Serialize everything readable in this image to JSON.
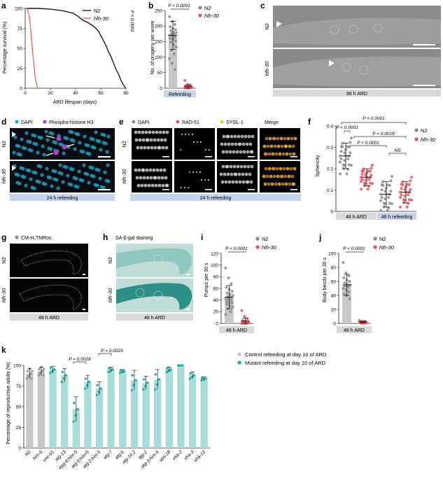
{
  "panels": {
    "a": {
      "letter": "a",
      "ylabel": "Percentage survival (%)",
      "xlabel": "ARD lifespan (days)",
      "pvalue": "P < 0.0001"
    },
    "b": {
      "letter": "b",
      "ylabel": "No. of progeny per worm",
      "pvalue": "P < 0.0001",
      "group_label": "Refeeding"
    },
    "c": {
      "letter": "c",
      "row_labels": [
        "N2",
        "hlh-30"
      ],
      "caption": "96 h ARD"
    },
    "d": {
      "letter": "d",
      "legend": [
        "DAPI",
        "Phospho-histone H3"
      ],
      "row_labels": [
        "N2",
        "hlh-30"
      ],
      "caption": "24 h refeeding"
    },
    "e": {
      "letter": "e",
      "columns": [
        "DAPI",
        "RAD-51",
        "SYGL-1",
        "Merge"
      ],
      "row_labels": [
        "N2",
        "hlh-30"
      ],
      "caption": "24 h refeeding"
    },
    "f": {
      "letter": "f",
      "ylabel": "Sphericity",
      "pvalues": [
        "P < 0.0001",
        "P < 0.0001",
        "P = 0.0018",
        "P < 0.0001",
        "NS"
      ],
      "group_labels": [
        "48 h ARD",
        "48 h refeeding"
      ]
    },
    "g": {
      "letter": "g",
      "legend": "CM-H₂TMRos",
      "row_labels": [
        "N2",
        "hlh-30"
      ],
      "caption": "48 h ARD"
    },
    "h": {
      "letter": "h",
      "title": "SA-β-gal staining",
      "row_labels": [
        "N2",
        "hlh-30"
      ],
      "caption": "48 h ARD"
    },
    "i": {
      "letter": "i",
      "ylabel": "Pumps per 30 s",
      "pvalue": "P < 0.0001",
      "group_label": "48 h ARD"
    },
    "j": {
      "letter": "j",
      "ylabel": "Body bends per 30 s",
      "pvalue": "P < 0.0001",
      "group_label": "48 h ARD"
    },
    "k": {
      "letter": "k",
      "ylabel": "Percentage of reproductive adults (%)",
      "pvalues": [
        "P = 0.0028",
        "P = 0.0029"
      ],
      "legend": [
        "Control refeeding at day 10 of ARD",
        "Mutant refeeding at day 10 of ARD"
      ]
    }
  },
  "legend_series": [
    "N2",
    "hlh-30"
  ],
  "colors": {
    "n2": "#1a1a1a",
    "hlh30": "#e8706a",
    "n2_points": "#8a8a8a",
    "hlh30_points": "#e8505a",
    "control": "#c8c8c8",
    "mutant": "#2bb0a8",
    "label_bar": "#d9d9d9",
    "label_bar_blue": "#c5d5ee",
    "dapi": "#2aa8c8",
    "ph3": "#b040c8",
    "sygl": "#d8d020"
  },
  "chart_data": [
    {
      "panel": "a",
      "type": "line",
      "xlabel": "ARD lifespan (days)",
      "ylabel": "Percentage survival (%)",
      "xlim": [
        0,
        80
      ],
      "ylim": [
        0,
        100
      ],
      "x_ticks": [
        0,
        20,
        40,
        60,
        80
      ],
      "y_ticks": [
        0,
        25,
        50,
        75,
        100
      ],
      "series": [
        {
          "name": "N2",
          "x": [
            0,
            10,
            20,
            30,
            38,
            42,
            46,
            50,
            54,
            58,
            60,
            62,
            64,
            66,
            68,
            70,
            72,
            74,
            76,
            78,
            80
          ],
          "y": [
            100,
            100,
            99,
            97,
            94,
            90,
            85,
            82,
            78,
            72,
            66,
            60,
            54,
            46,
            40,
            32,
            24,
            18,
            10,
            4,
            0
          ]
        },
        {
          "name": "hlh-30",
          "x": [
            0,
            1,
            2,
            3,
            4,
            5,
            6,
            7,
            8,
            9,
            10
          ],
          "y": [
            100,
            100,
            98,
            92,
            80,
            62,
            44,
            28,
            12,
            5,
            0
          ]
        }
      ]
    },
    {
      "panel": "b",
      "type": "bar",
      "categories": [
        "N2",
        "hlh-30"
      ],
      "values": [
        170,
        5
      ],
      "errors": [
        45,
        5
      ],
      "ylim": [
        0,
        250
      ],
      "y_ticks": [
        0,
        50,
        100,
        150,
        200,
        250
      ],
      "points": [
        [
          230,
          215,
          205,
          198,
          192,
          188,
          185,
          180,
          178,
          175,
          172,
          170,
          168,
          165,
          160,
          158,
          152,
          148,
          140,
          132,
          122,
          110,
          95,
          80,
          60
        ],
        [
          25,
          12,
          10,
          8,
          6,
          5,
          5,
          4,
          3,
          3,
          2,
          2,
          1,
          1,
          0,
          0
        ]
      ]
    },
    {
      "panel": "f",
      "type": "scatter",
      "categories": [
        "N2",
        "hlh-30",
        "N2",
        "hlh-30"
      ],
      "groups": [
        "48 h ARD",
        "48 h ARD",
        "48 h refeeding",
        "48 h refeeding"
      ],
      "means": [
        0.26,
        0.16,
        0.08,
        0.09
      ],
      "errors": [
        0.06,
        0.04,
        0.06,
        0.05
      ],
      "ylim": [
        0,
        0.4
      ],
      "y_ticks": [
        0,
        0.1,
        0.2,
        0.3,
        0.4
      ]
    },
    {
      "panel": "i",
      "type": "bar",
      "categories": [
        "N2",
        "hlh-30"
      ],
      "values": [
        45,
        4
      ],
      "errors": [
        20,
        5
      ],
      "ylim": [
        0,
        120
      ],
      "y_ticks": [
        0,
        20,
        40,
        60,
        80,
        100,
        120
      ],
      "points": [
        [
          95,
          78,
          68,
          62,
          58,
          55,
          52,
          50,
          48,
          46,
          45,
          43,
          42,
          40,
          38,
          36,
          35,
          33,
          30,
          28,
          25,
          20,
          15
        ],
        [
          22,
          12,
          8,
          5,
          4,
          3,
          2,
          2,
          1,
          1,
          0,
          0,
          0
        ]
      ]
    },
    {
      "panel": "j",
      "type": "bar",
      "categories": [
        "N2",
        "hlh-30"
      ],
      "values": [
        55,
        2
      ],
      "errors": [
        15,
        1
      ],
      "ylim": [
        0,
        100
      ],
      "y_ticks": [
        0,
        20,
        40,
        60,
        80,
        100
      ],
      "points": [
        [
          87,
          72,
          68,
          65,
          62,
          60,
          58,
          56,
          55,
          54,
          52,
          50,
          48,
          45,
          42,
          40,
          35
        ],
        [
          4,
          3,
          3,
          2,
          2,
          2,
          1,
          1,
          1,
          0,
          0
        ]
      ]
    },
    {
      "panel": "k",
      "type": "bar",
      "categories": [
        "N2",
        "him-5",
        "unc-51",
        "atg-13",
        "epg-8;him-5",
        "atg-9;him-5",
        "atg-2;him-5",
        "atg-7",
        "atg-5",
        "atg-16.2",
        "lgg-2",
        "atg-3;him-5",
        "vps-18",
        "vha-2",
        "vha-3",
        "vha-12"
      ],
      "group": [
        "control",
        "control",
        "mutant",
        "mutant",
        "mutant",
        "mutant",
        "mutant",
        "mutant",
        "mutant",
        "mutant",
        "mutant",
        "mutant",
        "mutant",
        "mutant",
        "mutant",
        "mutant"
      ],
      "values": [
        90,
        93,
        95,
        88,
        47,
        80,
        72,
        95,
        93,
        82,
        79,
        83,
        95,
        100,
        88,
        84
      ],
      "errors": [
        6,
        5,
        4,
        8,
        15,
        8,
        8,
        3,
        2,
        12,
        8,
        12,
        3,
        0,
        4,
        2
      ],
      "ylim": [
        0,
        100
      ],
      "y_ticks": [
        0,
        25,
        50,
        75,
        100
      ]
    }
  ]
}
